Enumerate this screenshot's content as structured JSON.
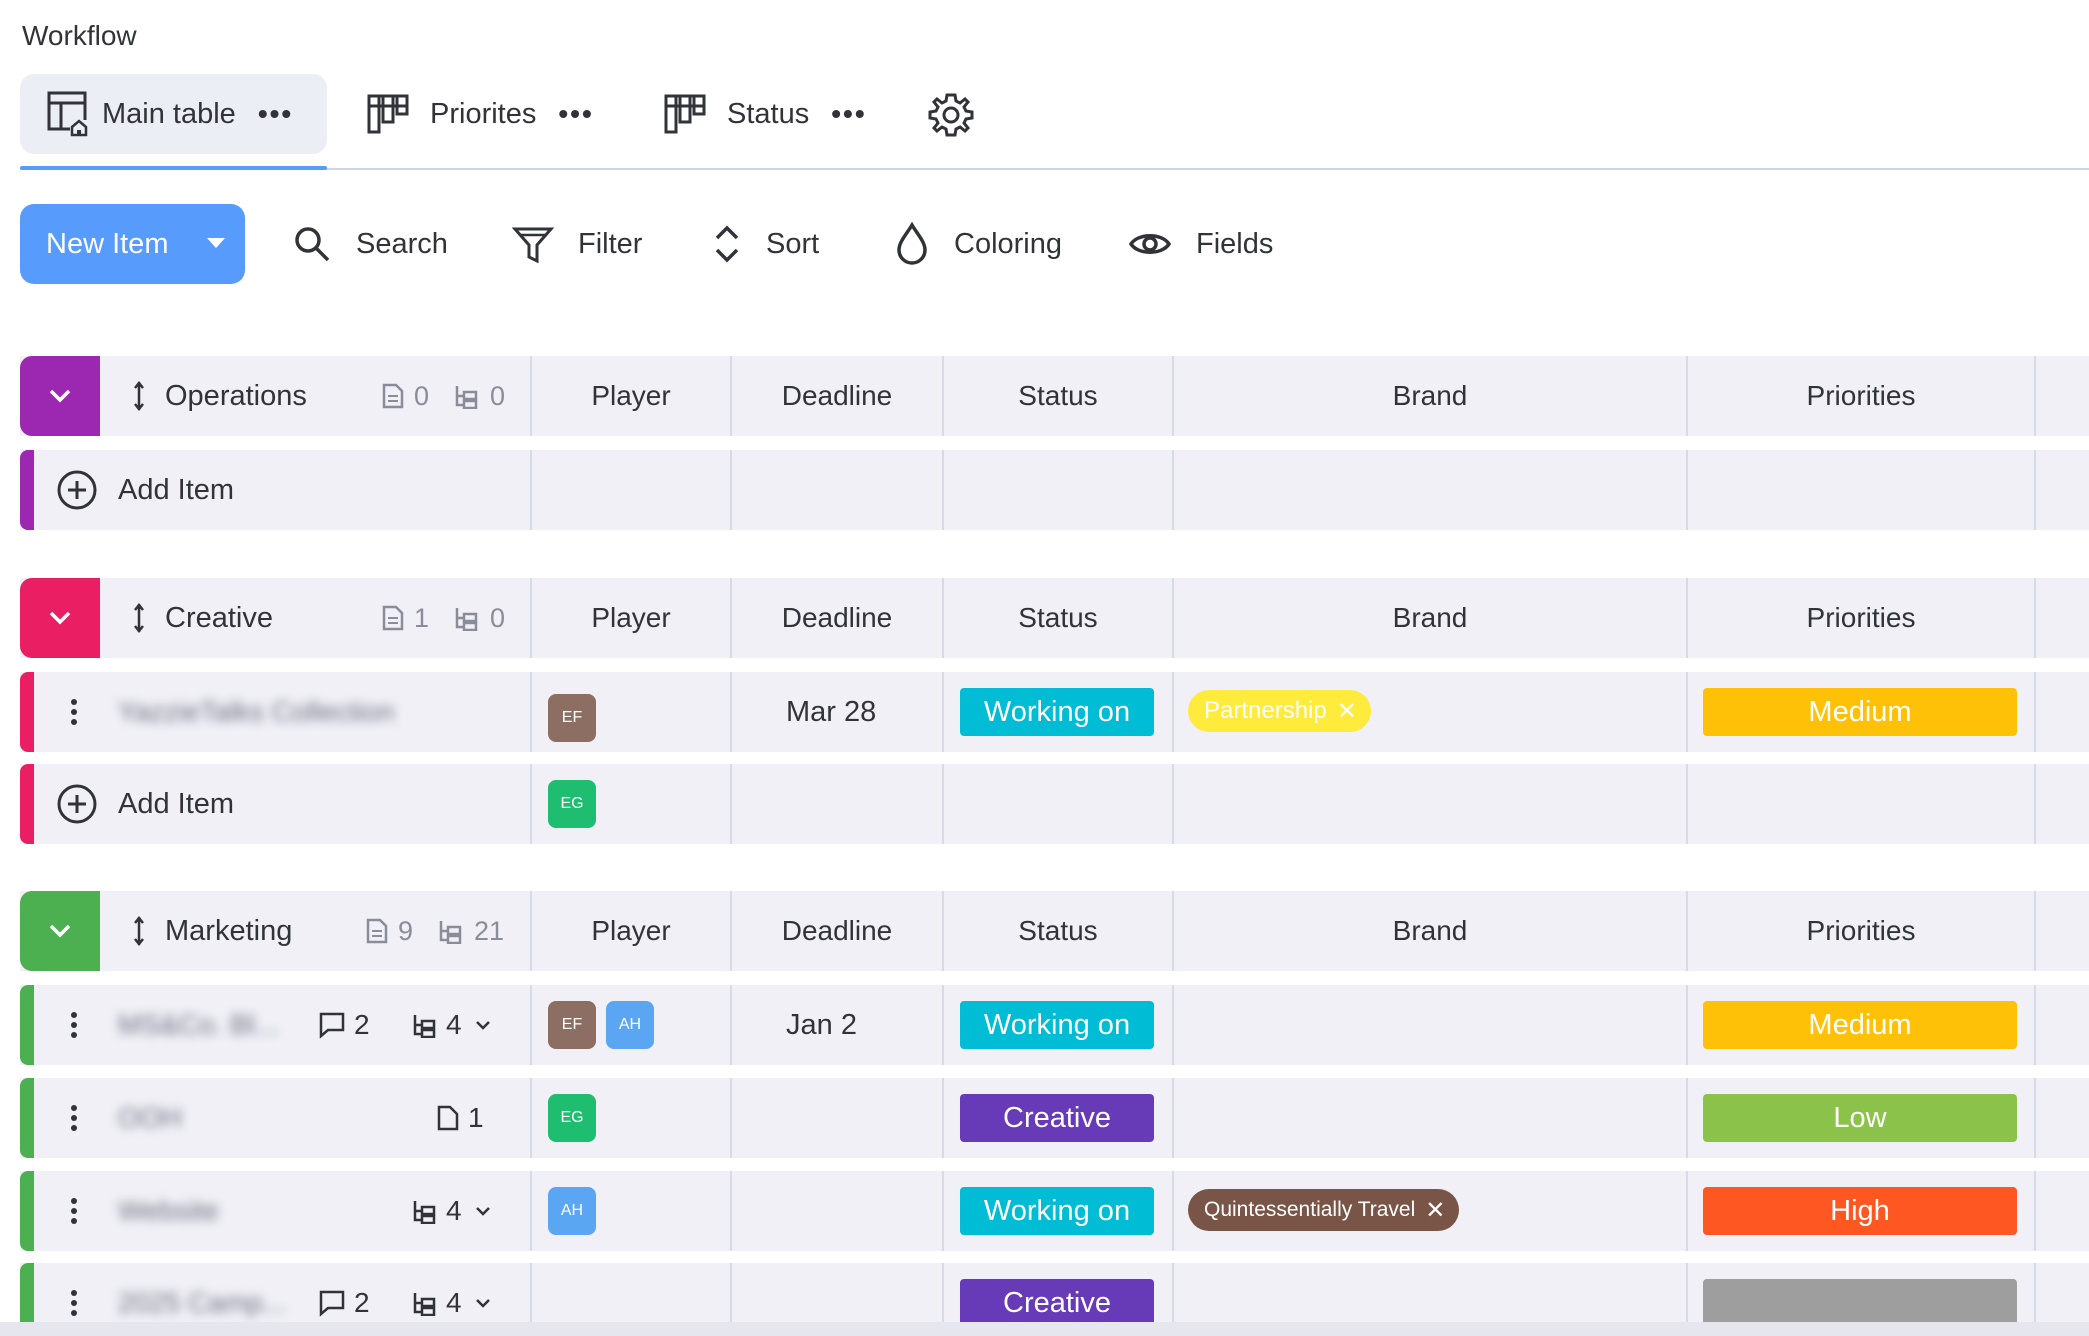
{
  "app": {
    "title": "Workflow"
  },
  "tabs": [
    {
      "label": "Main table",
      "more": "•••",
      "icon": "table-home-icon"
    },
    {
      "label": "Priorites",
      "more": "•••",
      "icon": "kanban-icon"
    },
    {
      "label": "Status",
      "more": "•••",
      "icon": "kanban-icon"
    }
  ],
  "toolbar": {
    "new_item": "New Item",
    "search": "Search",
    "filter": "Filter",
    "sort": "Sort",
    "coloring": "Coloring",
    "fields": "Fields"
  },
  "columns": [
    "Player",
    "Deadline",
    "Status",
    "Brand",
    "Priorities"
  ],
  "add_item_label": "Add Item",
  "colors": {
    "accent": "#579bfc",
    "operations": "#9c27b0",
    "creative": "#e91e63",
    "marketing": "#4caf50",
    "working_on": "#00bcd4",
    "creative_status": "#673ab7",
    "medium": "#ffc107",
    "low": "#8bc34a",
    "high": "#ff5722",
    "empty_priority": "#9e9e9e",
    "avatar_ef": "#8d6e63",
    "avatar_eg": "#1ebd6f",
    "avatar_ah": "#5aa6f2",
    "partnership": "#ffeb3b",
    "quintessentially": "#795548"
  },
  "groups": {
    "operations": {
      "name": "Operations",
      "docs": "0",
      "subitems": "0"
    },
    "creative": {
      "name": "Creative",
      "docs": "1",
      "subitems": "0",
      "item": {
        "name": "YazzieTalks Collection",
        "player": "EF",
        "deadline": "Mar 28",
        "status": "Working on",
        "brand": "Partnership",
        "priority": "Medium"
      },
      "add_player": "EG"
    },
    "marketing": {
      "name": "Marketing",
      "docs": "9",
      "subitems": "21",
      "items": [
        {
          "name": "MS&Co. Bl...",
          "comments": "2",
          "subitems": "4",
          "players": [
            "EF",
            "AH"
          ],
          "deadline": "Jan 2",
          "status": "Working on",
          "brand": "",
          "priority": "Medium"
        },
        {
          "name": "OOH",
          "files": "1",
          "players": [
            "EG"
          ],
          "deadline": "",
          "status": "Creative",
          "brand": "",
          "priority": "Low"
        },
        {
          "name": "Website",
          "subitems": "4",
          "players": [
            "AH"
          ],
          "deadline": "",
          "status": "Working on",
          "brand": "Quintessentially Travel",
          "priority": "High"
        },
        {
          "name": "2025 Camp...",
          "comments": "2",
          "subitems": "4",
          "players": [],
          "deadline": "",
          "status": "Creative",
          "brand": "",
          "priority": ""
        }
      ]
    }
  }
}
